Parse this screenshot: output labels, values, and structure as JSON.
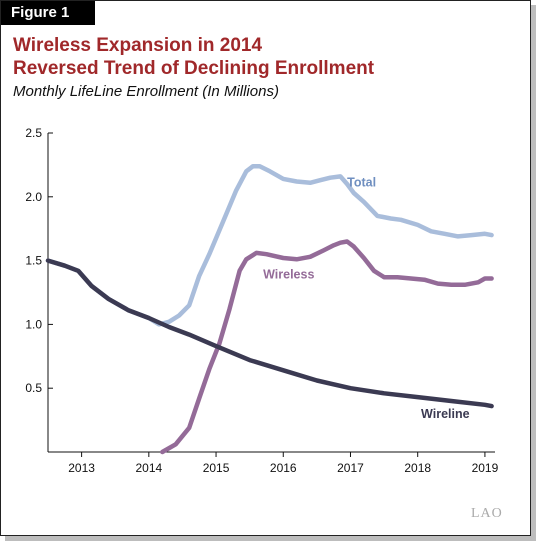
{
  "figure_label": "Figure 1",
  "title_lines": [
    "Wireless Expansion in 2014",
    "Reversed Trend of Declining Enrollment"
  ],
  "subtitle": "Monthly LifeLine Enrollment (In Millions)",
  "logo_text": "LAO",
  "colors": {
    "total": "#a9bddb",
    "wireless": "#946b98",
    "wireline": "#3b3a52",
    "title": "#a0282a"
  },
  "chart_data": {
    "type": "line",
    "title": "Wireless Expansion in 2014 Reversed Trend of Declining Enrollment",
    "subtitle": "Monthly LifeLine Enrollment (In Millions)",
    "xlabel": "",
    "ylabel": "",
    "xlim": [
      2012.5,
      2019.15
    ],
    "ylim": [
      0,
      2.5
    ],
    "x_ticks": [
      2013,
      2014,
      2015,
      2016,
      2017,
      2018,
      2019
    ],
    "y_ticks": [
      0.5,
      1.0,
      1.5,
      2.0,
      2.5
    ],
    "y_tick_labels": [
      "0.5",
      "1.0",
      "1.5",
      "2.0",
      "2.5"
    ],
    "grid": false,
    "legend": "inline labels",
    "series": [
      {
        "name": "Total",
        "key": "total",
        "label_at": [
          2016.95,
          2.08
        ],
        "x": [
          2012.5,
          2012.75,
          2012.95,
          2013.15,
          2013.4,
          2013.7,
          2014.0,
          2014.15,
          2014.3,
          2014.45,
          2014.6,
          2014.75,
          2014.9,
          2015.1,
          2015.3,
          2015.45,
          2015.55,
          2015.65,
          2015.8,
          2016.0,
          2016.2,
          2016.4,
          2016.55,
          2016.7,
          2016.85,
          2016.95,
          2017.05,
          2017.2,
          2017.4,
          2017.6,
          2017.75,
          2018.0,
          2018.2,
          2018.4,
          2018.6,
          2018.8,
          2019.0,
          2019.1
        ],
        "values": [
          1.5,
          1.46,
          1.42,
          1.3,
          1.2,
          1.11,
          1.05,
          1.0,
          1.02,
          1.07,
          1.15,
          1.38,
          1.55,
          1.8,
          2.05,
          2.2,
          2.24,
          2.24,
          2.2,
          2.14,
          2.12,
          2.11,
          2.13,
          2.15,
          2.16,
          2.1,
          2.03,
          1.96,
          1.85,
          1.83,
          1.82,
          1.78,
          1.73,
          1.71,
          1.69,
          1.7,
          1.71,
          1.7
        ]
      },
      {
        "name": "Wireless",
        "key": "wireless",
        "label_at": [
          2015.7,
          1.36
        ],
        "x": [
          2014.2,
          2014.4,
          2014.6,
          2014.75,
          2014.9,
          2015.05,
          2015.2,
          2015.35,
          2015.45,
          2015.6,
          2015.75,
          2016.0,
          2016.2,
          2016.4,
          2016.6,
          2016.75,
          2016.85,
          2016.95,
          2017.05,
          2017.2,
          2017.35,
          2017.5,
          2017.7,
          2017.9,
          2018.1,
          2018.3,
          2018.5,
          2018.7,
          2018.9,
          2019.0,
          2019.1
        ],
        "values": [
          0.0,
          0.06,
          0.19,
          0.42,
          0.65,
          0.85,
          1.12,
          1.42,
          1.51,
          1.56,
          1.55,
          1.52,
          1.51,
          1.53,
          1.58,
          1.62,
          1.64,
          1.65,
          1.61,
          1.52,
          1.42,
          1.37,
          1.37,
          1.36,
          1.35,
          1.32,
          1.31,
          1.31,
          1.33,
          1.36,
          1.36
        ]
      },
      {
        "name": "Wireline",
        "key": "wireline",
        "label_at": [
          2018.05,
          0.265
        ],
        "x": [
          2012.5,
          2012.75,
          2012.95,
          2013.15,
          2013.4,
          2013.7,
          2014.0,
          2014.3,
          2014.6,
          2015.0,
          2015.5,
          2016.0,
          2016.5,
          2017.0,
          2017.5,
          2018.0,
          2018.5,
          2019.0,
          2019.1
        ],
        "values": [
          1.5,
          1.46,
          1.42,
          1.3,
          1.2,
          1.11,
          1.05,
          0.98,
          0.92,
          0.83,
          0.72,
          0.64,
          0.56,
          0.5,
          0.46,
          0.43,
          0.4,
          0.37,
          0.36
        ]
      }
    ]
  }
}
